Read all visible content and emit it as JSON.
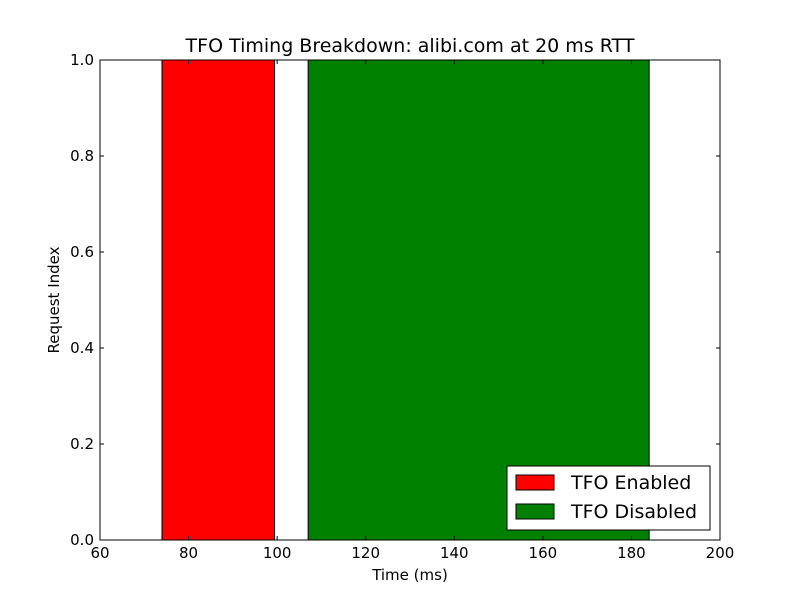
{
  "chart_data": {
    "type": "bar",
    "title": "TFO Timing Breakdown: alibi.com at 20 ms RTT",
    "xlabel": "Time (ms)",
    "ylabel": "Request Index",
    "xlim": [
      60,
      200
    ],
    "ylim": [
      0.0,
      1.0
    ],
    "xticks": [
      60,
      80,
      100,
      120,
      140,
      160,
      180,
      200
    ],
    "xtick_labels": [
      "60",
      "80",
      "100",
      "120",
      "140",
      "160",
      "180",
      "200"
    ],
    "yticks": [
      0.0,
      0.2,
      0.4,
      0.6,
      0.8,
      1.0
    ],
    "ytick_labels": [
      "0.0",
      "0.2",
      "0.4",
      "0.6",
      "0.8",
      "1.0"
    ],
    "grid": false,
    "legend_position": "lower-right",
    "series": [
      {
        "name": "TFO Enabled",
        "color": "#ff0000",
        "start": 74,
        "end": 99.4,
        "y0": 0.0,
        "y1": 1.0
      },
      {
        "name": "TFO Disabled",
        "color": "#008000",
        "start": 107,
        "end": 184,
        "y0": 0.0,
        "y1": 1.0
      }
    ]
  }
}
